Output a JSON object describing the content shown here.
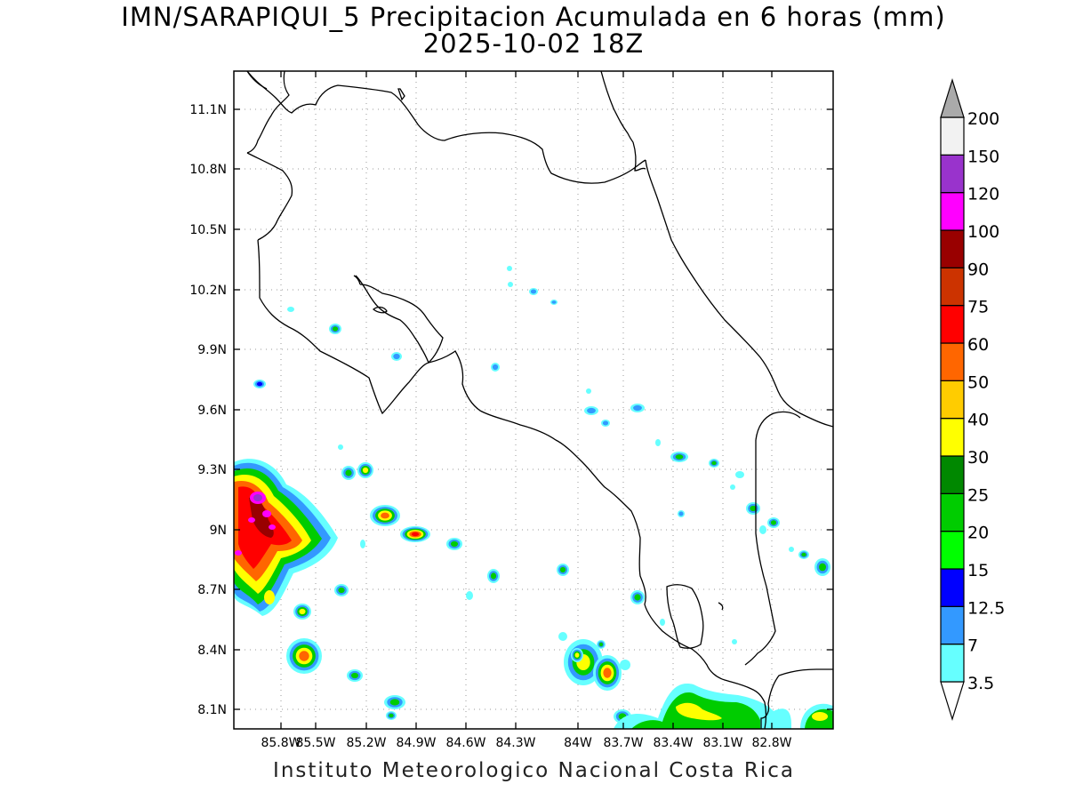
{
  "map": {
    "title_line1": "IMN/SARAPIQUI_5 Precipitacion Acumulada en 6 horas (mm)",
    "title_line2": "2025-10-02 18Z",
    "footer": "Instituto Meteorologico Nacional Costa Rica",
    "lat_labels": [
      "11.1N",
      "10.8N",
      "10.5N",
      "10.2N",
      "9.9N",
      "9.6N",
      "9.3N",
      "9N",
      "8.7N",
      "8.4N",
      "8.1N"
    ],
    "lon_labels": [
      "85.8W",
      "85.5W",
      "85.2W",
      "84.9W",
      "84.6W",
      "84.3W",
      "84W",
      "83.7W",
      "83.4W",
      "83.1W",
      "82.8W"
    ]
  },
  "legend": {
    "labels": [
      "3.5",
      "7",
      "12.5",
      "15",
      "20",
      "25",
      "30",
      "40",
      "50",
      "60",
      "75",
      "90",
      "100",
      "120",
      "150",
      "200"
    ],
    "colors": [
      "#ffffff",
      "#66ffff",
      "#3399ff",
      "#0000ff",
      "#00ff00",
      "#00cc00",
      "#008800",
      "#ffff00",
      "#ffcc00",
      "#ff6600",
      "#ff0000",
      "#cc3300",
      "#990000",
      "#ff00ff",
      "#9933cc",
      "#f2f2f2",
      "#aaaaaa"
    ]
  }
}
